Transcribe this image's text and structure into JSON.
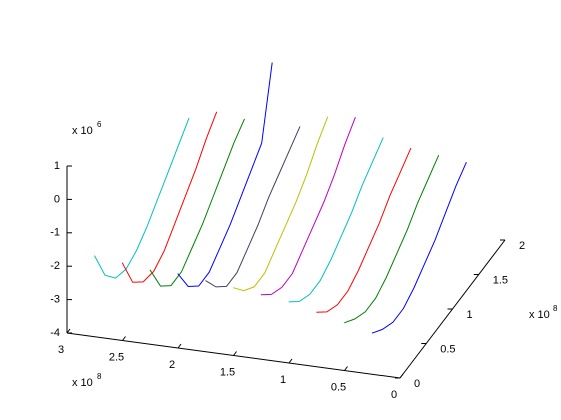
{
  "chart_data": {
    "type": "line3d",
    "xlim": [
      0,
      3
    ],
    "xticks": [
      0,
      0.5,
      1,
      1.5,
      2,
      2.5,
      3
    ],
    "ylim": [
      0,
      2
    ],
    "yticks": [
      0,
      0.5,
      1,
      1.5,
      2
    ],
    "zlim": [
      -4,
      1
    ],
    "zticks": [
      -4,
      -3,
      -2,
      -1,
      0,
      1
    ],
    "x_multiplier": {
      "base": "x 10",
      "exponent": "8"
    },
    "y_multiplier": {
      "base": "x 10",
      "exponent": "8"
    },
    "z_multiplier": {
      "base": "x 10",
      "exponent": "6"
    },
    "series": [
      {
        "color": "#00bfbf",
        "x": 2.8,
        "y": [
          0.1,
          0.3,
          0.5,
          0.7,
          0.9,
          1.1,
          1.3,
          1.5,
          1.7,
          1.9
        ],
        "z": [
          -1.8,
          -2.8,
          -3.3,
          -3.45,
          -3.3,
          -3.0,
          -2.6,
          -2.2,
          -1.8,
          -1.4
        ]
      },
      {
        "color": "#ff0000",
        "x": 2.55,
        "y": [
          0.1,
          0.3,
          0.5,
          0.7,
          0.9,
          1.1,
          1.3,
          1.5,
          1.7,
          1.9
        ],
        "z": [
          -1.9,
          -2.9,
          -3.3,
          -3.4,
          -3.2,
          -2.8,
          -2.4,
          -2.0,
          -1.5,
          -1.1
        ]
      },
      {
        "color": "#008000",
        "x": 2.3,
        "y": [
          0.1,
          0.3,
          0.5,
          0.7,
          0.9,
          1.1,
          1.3,
          1.5,
          1.7,
          1.9
        ],
        "z": [
          -2.0,
          -2.9,
          -3.3,
          -3.3,
          -3.0,
          -2.7,
          -2.3,
          -1.9,
          -1.5,
          -1.2
        ]
      },
      {
        "color": "#0000ff",
        "x": 2.05,
        "y": [
          0.1,
          0.3,
          0.5,
          0.7,
          0.9,
          1.1,
          1.3,
          1.5,
          1.7,
          1.9
        ],
        "z": [
          -2.0,
          -2.8,
          -3.2,
          -3.2,
          -2.9,
          -2.6,
          -2.2,
          -1.8,
          -1.4,
          0.6
        ]
      },
      {
        "color": "#404060",
        "x": 1.8,
        "y": [
          0.1,
          0.3,
          0.5,
          0.7,
          0.9,
          1.1,
          1.3,
          1.5,
          1.7,
          1.9
        ],
        "z": [
          -2.1,
          -2.7,
          -3.1,
          -3.1,
          -2.8,
          -2.5,
          -2.1,
          -1.8,
          -1.5,
          -1.2
        ]
      },
      {
        "color": "#bfbf00",
        "x": 1.55,
        "y": [
          0.1,
          0.3,
          0.5,
          0.7,
          0.9,
          1.1,
          1.3,
          1.5,
          1.7,
          1.9
        ],
        "z": [
          -2.2,
          -2.7,
          -3.0,
          -3.0,
          -2.7,
          -2.4,
          -2.1,
          -1.7,
          -1.2,
          -0.8
        ]
      },
      {
        "color": "#bf00bf",
        "x": 1.3,
        "y": [
          0.1,
          0.3,
          0.5,
          0.7,
          0.9,
          1.1,
          1.3,
          1.5,
          1.7,
          1.9
        ],
        "z": [
          -2.3,
          -2.7,
          -2.9,
          -2.9,
          -2.6,
          -2.3,
          -2.0,
          -1.6,
          -1.1,
          -0.7
        ]
      },
      {
        "color": "#00bfbf",
        "x": 1.05,
        "y": [
          0.1,
          0.3,
          0.5,
          0.7,
          0.9,
          1.1,
          1.3,
          1.5,
          1.7,
          1.9
        ],
        "z": [
          -2.4,
          -2.8,
          -3.0,
          -3.0,
          -2.8,
          -2.5,
          -2.2,
          -1.8,
          -1.5,
          -1.2
        ]
      },
      {
        "color": "#ff0000",
        "x": 0.8,
        "y": [
          0.1,
          0.3,
          0.5,
          0.7,
          0.9,
          1.1,
          1.3,
          1.5,
          1.7,
          1.9
        ],
        "z": [
          -2.6,
          -3.0,
          -3.2,
          -3.2,
          -3.0,
          -2.7,
          -2.4,
          -2.0,
          -1.7,
          -1.4
        ]
      },
      {
        "color": "#008000",
        "x": 0.55,
        "y": [
          0.1,
          0.3,
          0.5,
          0.7,
          0.9,
          1.1,
          1.3,
          1.5,
          1.7,
          1.9
        ],
        "z": [
          -2.8,
          -3.1,
          -3.3,
          -3.3,
          -3.1,
          -2.8,
          -2.5,
          -2.1,
          -1.8,
          -1.5
        ]
      },
      {
        "color": "#0000ff",
        "x": 0.3,
        "y": [
          0.1,
          0.3,
          0.5,
          0.7,
          0.9,
          1.1,
          1.3,
          1.5,
          1.7,
          1.9
        ],
        "z": [
          -3.0,
          -3.3,
          -3.5,
          -3.5,
          -3.3,
          -3.0,
          -2.7,
          -2.3,
          -1.9,
          -1.6
        ]
      }
    ]
  }
}
